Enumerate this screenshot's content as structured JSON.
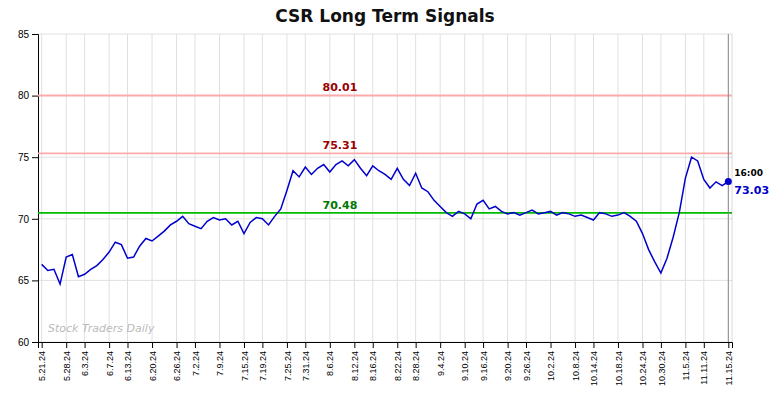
{
  "chart_data": {
    "type": "line",
    "title": "CSR Long Term Signals",
    "categories": [
      "5.21.24",
      null,
      null,
      null,
      "5.28.24",
      null,
      null,
      "6.3.24",
      null,
      null,
      null,
      "6.7.24",
      null,
      null,
      "6.13.24",
      null,
      null,
      null,
      "6.20.24",
      null,
      null,
      null,
      "6.26.24",
      null,
      null,
      "7.2.24",
      null,
      null,
      null,
      "7.9.24",
      null,
      null,
      null,
      "7.15.24",
      null,
      null,
      "7.19.24",
      null,
      null,
      null,
      "7.25.24",
      null,
      null,
      "7.31.24",
      null,
      null,
      null,
      "8.6.24",
      null,
      null,
      null,
      "8.12.24",
      null,
      null,
      "8.16.24",
      null,
      null,
      null,
      "8.22.24",
      null,
      null,
      "8.28.24",
      null,
      null,
      null,
      "9.4.24",
      null,
      null,
      null,
      "9.10.24",
      null,
      null,
      "9.16.24",
      null,
      null,
      null,
      "9.20.24",
      null,
      null,
      "9.26.24",
      null,
      null,
      null,
      "10.2.24",
      null,
      null,
      null,
      "10.8.24",
      null,
      null,
      "10.14.24",
      null,
      null,
      null,
      "10.18.24",
      null,
      null,
      null,
      "10.24.24",
      null,
      null,
      "10.30.24",
      null,
      null,
      null,
      "11.5.24",
      null,
      null,
      "11.11.24",
      null,
      null,
      null,
      "11.15.24"
    ],
    "series": [
      {
        "color": "#0000cc",
        "values": [
          66.3,
          65.8,
          65.9,
          64.7,
          66.9,
          67.1,
          65.3,
          65.5,
          65.9,
          66.2,
          66.7,
          67.3,
          68.1,
          67.9,
          66.8,
          66.9,
          67.8,
          68.4,
          68.2,
          68.6,
          69.0,
          69.5,
          69.8,
          70.2,
          69.6,
          69.4,
          69.2,
          69.8,
          70.1,
          69.9,
          70.0,
          69.5,
          69.8,
          68.8,
          69.7,
          70.1,
          70.0,
          69.5,
          70.2,
          70.8,
          72.3,
          73.9,
          73.4,
          74.2,
          73.6,
          74.1,
          74.4,
          73.8,
          74.4,
          74.7,
          74.3,
          74.8,
          74.1,
          73.5,
          74.3,
          73.9,
          73.6,
          73.2,
          74.1,
          73.2,
          72.7,
          73.7,
          72.5,
          72.2,
          71.5,
          71.0,
          70.5,
          70.2,
          70.6,
          70.4,
          70.0,
          71.2,
          71.5,
          70.8,
          71.0,
          70.6,
          70.4,
          70.5,
          70.3,
          70.5,
          70.7,
          70.4,
          70.5,
          70.6,
          70.3,
          70.5,
          70.4,
          70.2,
          70.3,
          70.1,
          69.9,
          70.5,
          70.4,
          70.2,
          70.3,
          70.5,
          70.2,
          69.8,
          68.8,
          67.5,
          66.5,
          65.6,
          66.8,
          68.5,
          70.5,
          73.3,
          75.0,
          74.7,
          73.2,
          72.5,
          73.0,
          72.7,
          73.03
        ]
      }
    ],
    "reference_lines": [
      {
        "value": 70.48,
        "label": "70.48",
        "color": "#00bb00",
        "label_color": "#007700"
      },
      {
        "value": 75.31,
        "label": "75.31",
        "color": "#ffaaaa",
        "label_color": "#990000"
      },
      {
        "value": 80.01,
        "label": "80.01",
        "color": "#ffaaaa",
        "label_color": "#990000"
      }
    ],
    "last_label": "16:00",
    "last_value_label": "73.03",
    "watermark": {
      "text": "Stock Traders Daily",
      "color": "#bbbbbb"
    },
    "ylim": [
      60,
      85
    ],
    "yticks": [
      60,
      65,
      70,
      75,
      80,
      85
    ],
    "grid": true
  }
}
